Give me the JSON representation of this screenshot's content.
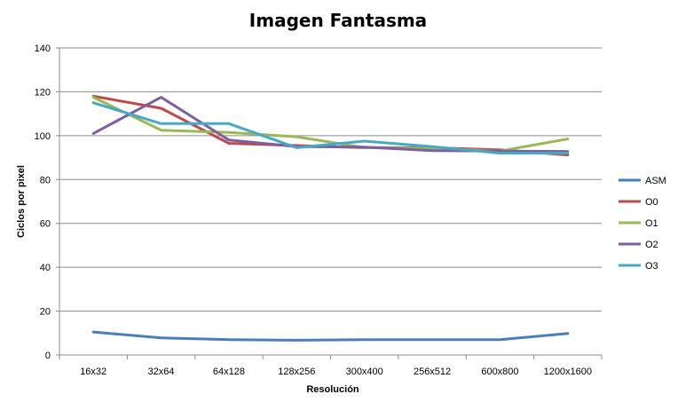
{
  "chart_data": {
    "type": "line",
    "title": "Imagen Fantasma",
    "xlabel": "Resolución",
    "ylabel": "Ciclos por pixel",
    "categories": [
      "16x32",
      "32x64",
      "64x128",
      "128x256",
      "300x400",
      "256x512",
      "600x800",
      "1200x1600"
    ],
    "ylim": [
      0,
      140
    ],
    "yticks": [
      0,
      20,
      40,
      60,
      80,
      100,
      120,
      140
    ],
    "grid": true,
    "legend_position": "right",
    "series": [
      {
        "name": "ASM",
        "color": "#4a7ebb",
        "values": [
          10.5,
          7.8,
          7.0,
          6.7,
          7.0,
          7.0,
          7.0,
          9.8
        ]
      },
      {
        "name": "O0",
        "color": "#be4b48",
        "values": [
          118,
          112.5,
          96.5,
          95.5,
          94.5,
          94.5,
          93.5,
          91.2
        ]
      },
      {
        "name": "O1",
        "color": "#98b954",
        "values": [
          117.5,
          102.5,
          101.5,
          99.5,
          94.5,
          94.2,
          93.0,
          98.5
        ]
      },
      {
        "name": "O2",
        "color": "#7d5fa0",
        "values": [
          101,
          117.5,
          98.0,
          95.0,
          94.8,
          93.2,
          93.0,
          92.8
        ]
      },
      {
        "name": "O3",
        "color": "#46aac5",
        "values": [
          115,
          105.5,
          105.5,
          94.5,
          97.5,
          95.0,
          92.0,
          92.0
        ]
      }
    ]
  }
}
